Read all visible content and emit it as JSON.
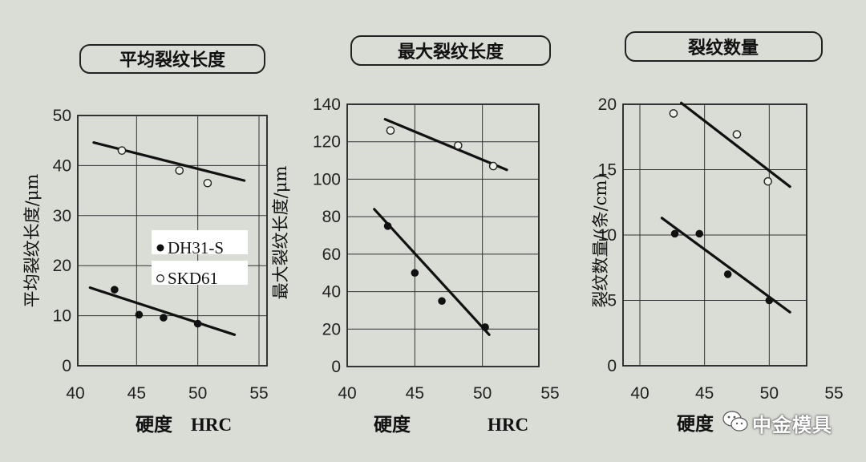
{
  "chart_data": [
    {
      "type": "scatter",
      "title": "平均裂纹长度",
      "ylabel": "平均裂纹长度/μm",
      "xlabel": "硬度",
      "xlabel_unit": "HRC",
      "xlim": [
        40,
        55
      ],
      "ylim": [
        0,
        50
      ],
      "x_ticks": [
        "40",
        "45",
        "50",
        "55"
      ],
      "y_ticks": [
        "0",
        "10",
        "20",
        "30",
        "40",
        "50"
      ],
      "grid": true,
      "legend": [
        {
          "marker": "filled",
          "label": "DH31-S"
        },
        {
          "marker": "open",
          "label": "SKD61"
        }
      ],
      "series": [
        {
          "name": "DH31-S",
          "marker": "filled",
          "points": [
            [
              43.2,
              15.2
            ],
            [
              45.2,
              10.2
            ],
            [
              47.2,
              9.6
            ],
            [
              50.0,
              8.4
            ]
          ],
          "trend": [
            [
              41.2,
              15.6
            ],
            [
              53.0,
              6.2
            ]
          ]
        },
        {
          "name": "SKD61",
          "marker": "open",
          "points": [
            [
              43.8,
              43.0
            ],
            [
              48.5,
              39.0
            ],
            [
              50.8,
              36.5
            ]
          ],
          "trend": [
            [
              41.5,
              44.6
            ],
            [
              53.8,
              37.0
            ]
          ]
        }
      ]
    },
    {
      "type": "scatter",
      "title": "最大裂纹长度",
      "ylabel": "最大裂纹长度/μm",
      "xlabel": "硬度",
      "xlabel_unit": "HRC",
      "xlim": [
        40,
        55
      ],
      "ylim": [
        0,
        140
      ],
      "x_ticks": [
        "40",
        "45",
        "50",
        "55"
      ],
      "y_ticks": [
        "0",
        "20",
        "40",
        "60",
        "80",
        "100",
        "120",
        "140"
      ],
      "grid": true,
      "series": [
        {
          "marker": "filled",
          "points": [
            [
              43.0,
              75
            ],
            [
              45.0,
              50
            ],
            [
              47.0,
              35
            ],
            [
              50.2,
              21
            ]
          ],
          "trend": [
            [
              42.0,
              84
            ],
            [
              50.5,
              17
            ]
          ]
        },
        {
          "marker": "open",
          "points": [
            [
              43.2,
              126
            ],
            [
              48.2,
              118
            ],
            [
              50.8,
              107
            ]
          ],
          "trend": [
            [
              42.8,
              132
            ],
            [
              51.8,
              105
            ]
          ]
        }
      ]
    },
    {
      "type": "scatter",
      "title": "裂纹数量",
      "ylabel": "裂纹数量/(条/cm)",
      "xlabel": "硬度",
      "xlabel_unit": "HRC",
      "xlim": [
        40,
        55
      ],
      "ylim": [
        0,
        20
      ],
      "x_ticks": [
        "40",
        "45",
        "50",
        "55"
      ],
      "y_ticks": [
        "0",
        "5",
        "10",
        "15",
        "20"
      ],
      "grid": true,
      "series": [
        {
          "marker": "filled",
          "points": [
            [
              42.7,
              10.1
            ],
            [
              44.6,
              10.1
            ],
            [
              46.8,
              7.0
            ],
            [
              50.0,
              5.0
            ]
          ],
          "trend": [
            [
              41.7,
              11.3
            ],
            [
              51.6,
              4.1
            ]
          ]
        },
        {
          "marker": "open",
          "points": [
            [
              42.6,
              19.3
            ],
            [
              47.5,
              17.7
            ],
            [
              49.9,
              14.1
            ]
          ],
          "trend": [
            [
              43.2,
              20.1
            ],
            [
              51.6,
              13.7
            ]
          ]
        }
      ]
    }
  ],
  "watermark": {
    "text": "中金模具",
    "icon": "wechat-icon"
  }
}
